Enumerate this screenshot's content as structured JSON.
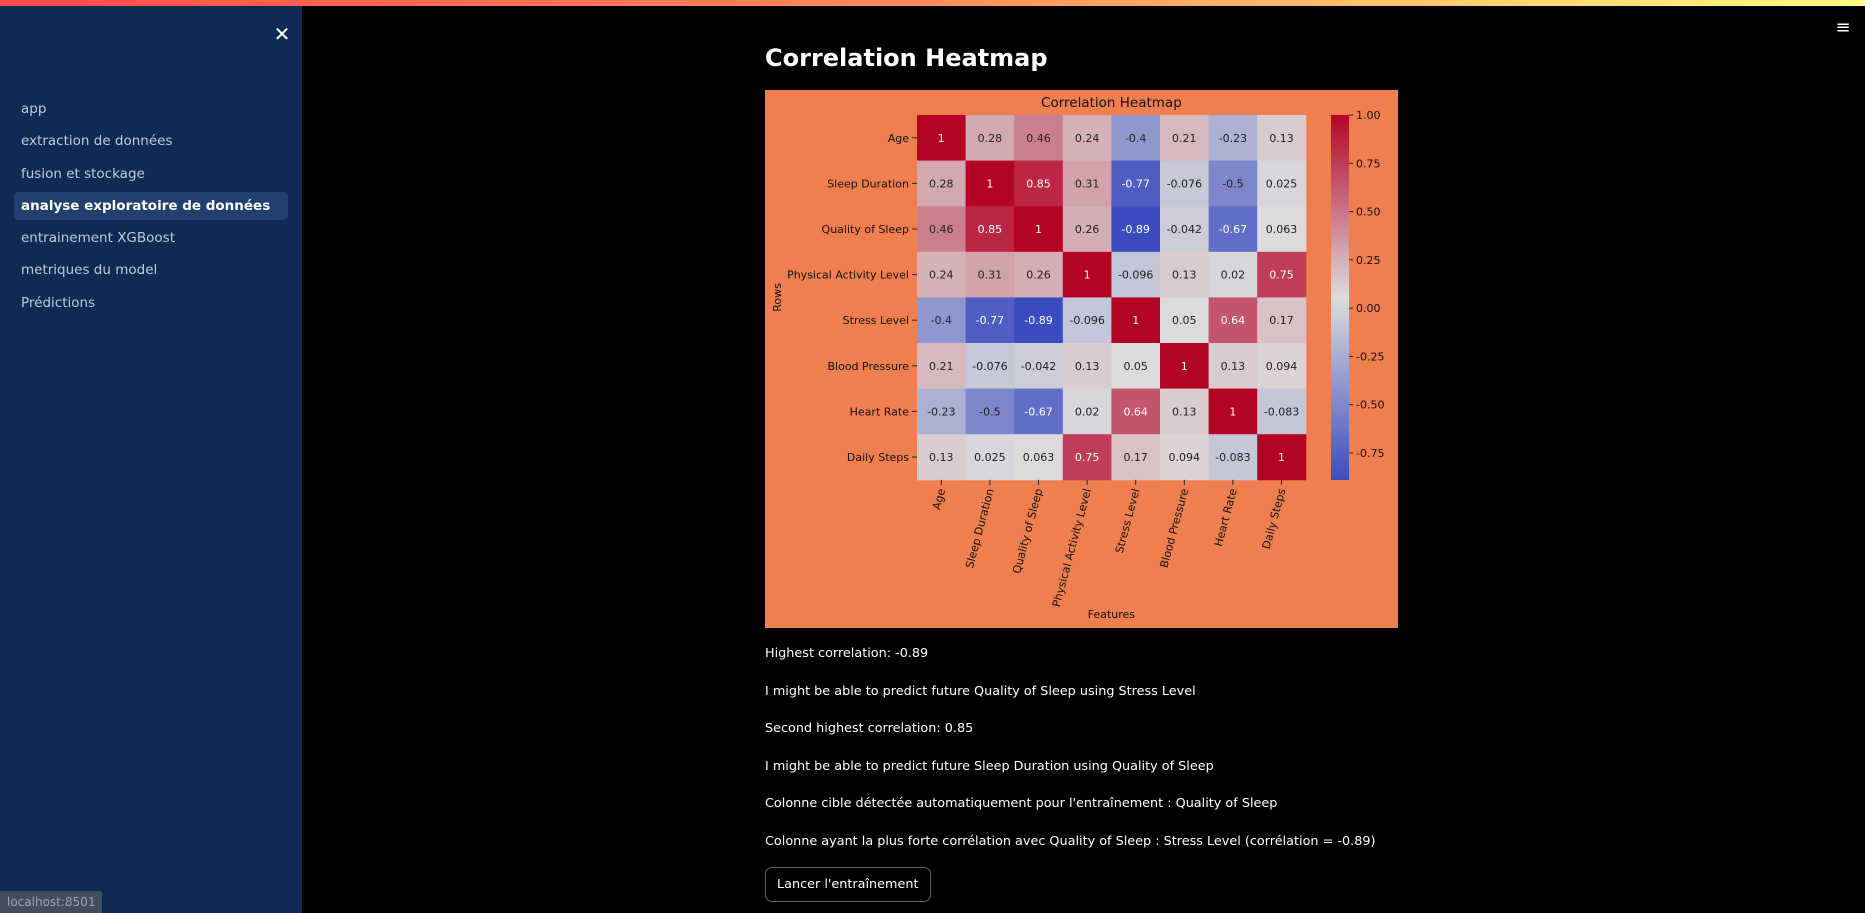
{
  "sidebar": {
    "close_label": "✕",
    "items": [
      {
        "label": "app",
        "active": false
      },
      {
        "label": "extraction de données",
        "active": false
      },
      {
        "label": "fusion et stockage",
        "active": false
      },
      {
        "label": "analyse exploratoire de données",
        "active": true
      },
      {
        "label": "entrainement XGBoost",
        "active": false
      },
      {
        "label": "metriques du model",
        "active": false
      },
      {
        "label": "Prédictions",
        "active": false
      }
    ]
  },
  "status_url": "localhost:8501",
  "menu_icon": "≡",
  "page": {
    "title": "Correlation Heatmap",
    "messages": [
      "Highest correlation: -0.89",
      "I might be able to predict future Quality of Sleep using Stress Level",
      "Second highest correlation: 0.85",
      "I might be able to predict future Sleep Duration using Quality of Sleep",
      "Colonne cible détectée automatiquement pour l'entraînement : Quality of Sleep",
      "Colonne ayant la plus forte corrélation avec Quality of Sleep : Stress Level (corrélation = -0.89)"
    ],
    "train_button": "Lancer l'entraînement"
  },
  "chart_data": {
    "type": "heatmap",
    "title": "Correlation Heatmap",
    "xlabel": "Features",
    "ylabel": "Rows",
    "labels": [
      "Age",
      "Sleep Duration",
      "Quality of Sleep",
      "Physical Activity Level",
      "Stress Level",
      "Blood Pressure",
      "Heart Rate",
      "Daily Steps"
    ],
    "matrix": [
      [
        1,
        0.28,
        0.46,
        0.24,
        -0.4,
        0.21,
        -0.23,
        0.13
      ],
      [
        0.28,
        1,
        0.85,
        0.31,
        -0.77,
        -0.076,
        -0.5,
        0.025
      ],
      [
        0.46,
        0.85,
        1,
        0.26,
        -0.89,
        -0.042,
        -0.67,
        0.063
      ],
      [
        0.24,
        0.31,
        0.26,
        1,
        -0.096,
        0.13,
        0.02,
        0.75
      ],
      [
        -0.4,
        -0.77,
        -0.89,
        -0.096,
        1,
        0.05,
        0.64,
        0.17
      ],
      [
        0.21,
        -0.076,
        -0.042,
        0.13,
        0.05,
        1,
        0.13,
        0.094
      ],
      [
        -0.23,
        -0.5,
        -0.67,
        0.02,
        0.64,
        0.13,
        1,
        -0.083
      ],
      [
        0.13,
        0.025,
        0.063,
        0.75,
        0.17,
        0.094,
        -0.083,
        1
      ]
    ],
    "colormap": "coolwarm",
    "vmin": -0.89,
    "vmax": 1,
    "colorbar_ticks": [
      "1.00",
      "0.75",
      "0.50",
      "0.25",
      "0.00",
      "-0.25",
      "-0.50",
      "-0.75"
    ],
    "colors": {
      "background": "#ef7f4e",
      "low": "#3b4cc0",
      "mid": "#dddcdc",
      "high": "#b40426"
    }
  }
}
